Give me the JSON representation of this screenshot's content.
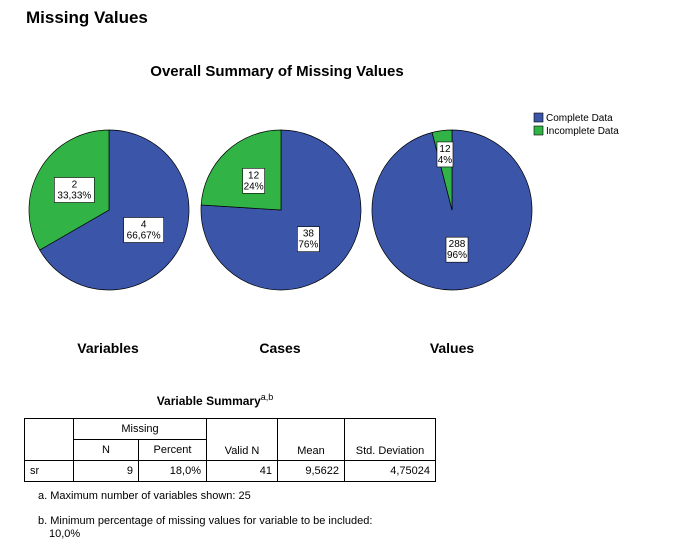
{
  "page": {
    "title": "Missing Values"
  },
  "colors": {
    "complete": "#3b55a8",
    "incomplete": "#31b445"
  },
  "chart_data": {
    "type": "pie",
    "title": "Overall Summary of Missing Values",
    "legend": {
      "placement": "top-right",
      "entries": [
        "Complete Data",
        "Incomplete Data"
      ]
    },
    "pies": [
      {
        "name": "Variables",
        "slices": [
          {
            "label": "Complete Data",
            "value": 4,
            "percent_label": "66,67%"
          },
          {
            "label": "Incomplete Data",
            "value": 2,
            "percent_label": "33,33%"
          }
        ]
      },
      {
        "name": "Cases",
        "slices": [
          {
            "label": "Complete Data",
            "value": 38,
            "percent_label": "76%"
          },
          {
            "label": "Incomplete Data",
            "value": 12,
            "percent_label": "24%"
          }
        ]
      },
      {
        "name": "Values",
        "slices": [
          {
            "label": "Complete Data",
            "value": 288,
            "percent_label": "96%"
          },
          {
            "label": "Incomplete Data",
            "value": 12,
            "percent_label": "4%"
          }
        ]
      }
    ]
  },
  "summary": {
    "caption": "Variable Summary",
    "caption_superscript": "a,b",
    "headers": {
      "missing": "Missing",
      "n": "N",
      "percent": "Percent",
      "valid_n": "Valid N",
      "mean": "Mean",
      "std_dev": "Std. Deviation"
    },
    "rows": [
      {
        "variable": "sr",
        "n": "9",
        "percent": "18,0%",
        "valid_n": "41",
        "mean": "9,5622",
        "std_dev": "4,75024"
      }
    ],
    "footnotes": {
      "a": "a. Maximum number of variables shown: 25",
      "b_line1": "b. Minimum percentage of missing values for variable to be included:",
      "b_line2": "10,0%"
    }
  }
}
